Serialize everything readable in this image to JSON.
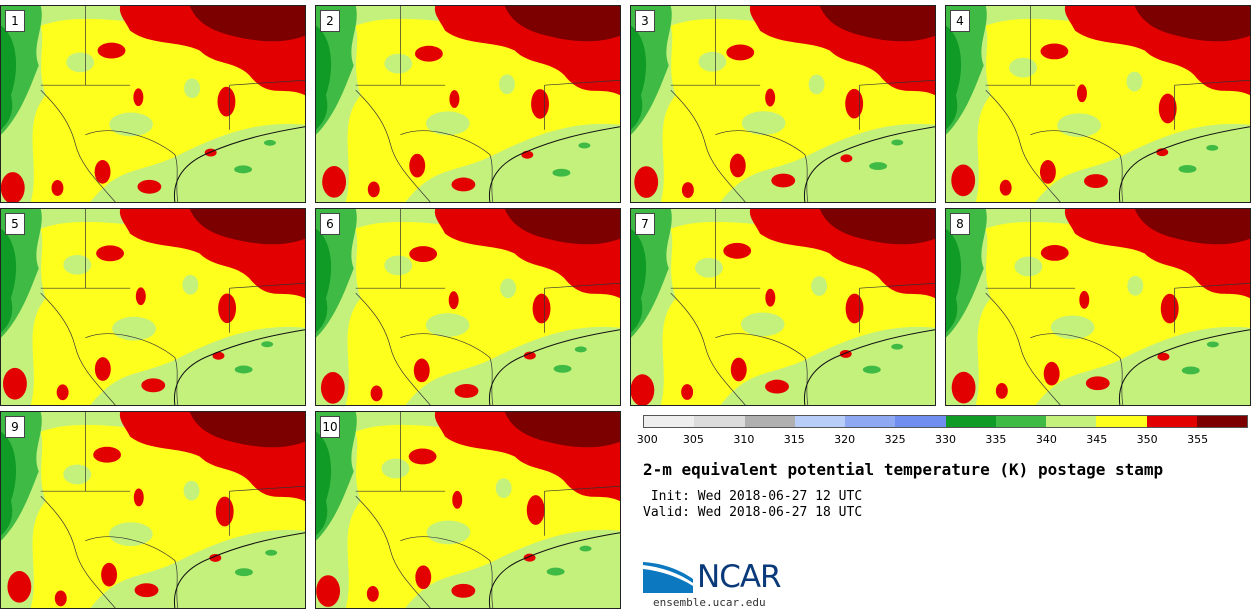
{
  "panels": [
    {
      "label": "1"
    },
    {
      "label": "2"
    },
    {
      "label": "3"
    },
    {
      "label": "4"
    },
    {
      "label": "5"
    },
    {
      "label": "6"
    },
    {
      "label": "7"
    },
    {
      "label": "8"
    },
    {
      "label": "9"
    },
    {
      "label": "10"
    }
  ],
  "colorbar": {
    "ticks": [
      "300",
      "305",
      "310",
      "315",
      "320",
      "325",
      "330",
      "335",
      "340",
      "345",
      "350",
      "355"
    ],
    "colors": [
      "#eeeeee",
      "#dcdcdc",
      "#b0b0b0",
      "#b8cdf7",
      "#8fa8f2",
      "#6f8ef0",
      "#109b27",
      "#3fbb45",
      "#c4f07c",
      "#ffff1e",
      "#e30000",
      "#7d0000"
    ]
  },
  "title": "2-m equivalent potential temperature (K) postage stamp",
  "init_line": " Init: Wed 2018-06-27 12 UTC",
  "valid_line": "Valid: Wed 2018-06-27 18 UTC",
  "logo": {
    "text": "NCAR",
    "url": "ensemble.ucar.edu"
  },
  "colors": {
    "red": "#e30000",
    "darkred": "#7d0000",
    "yellow": "#ffff1e",
    "lightgreen": "#c4f07c",
    "green": "#3fbb45",
    "darkgreen": "#109b27"
  }
}
